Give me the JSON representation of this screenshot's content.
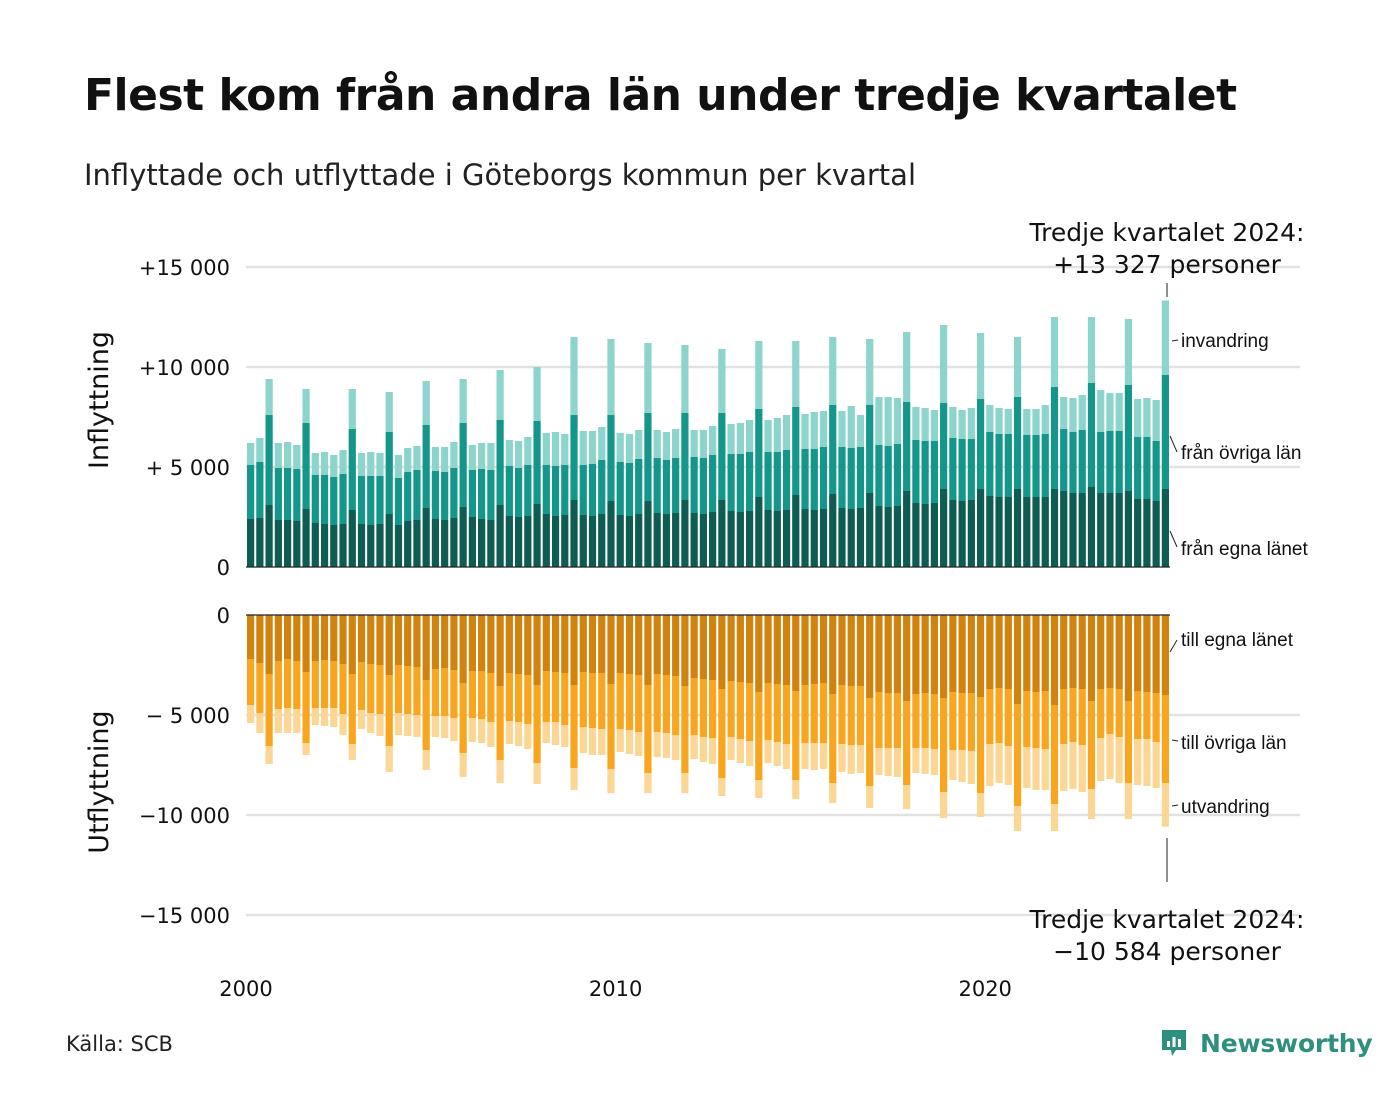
{
  "title": "Flest kom från andra län under tredje kvartalet",
  "subtitle": "Inflyttade och utflyttade i Göteborgs kommun per kvartal",
  "source": "Källa: SCB",
  "brand": {
    "name": "Newsworthy",
    "icon": "newsworthy-logo-icon",
    "color": "#2f8f7f"
  },
  "annotations": {
    "top_line1": "Tredje kvartalet 2024:",
    "top_line2": "+13 327 personer",
    "bottom_line1": "Tredje kvartalet 2024:",
    "bottom_line2": "−10 584 personer"
  },
  "colors": {
    "in_own": "#0e5c52",
    "in_other": "#14968a",
    "in_immig": "#8cd4cc",
    "out_own": "#d1830f",
    "out_other": "#f8a51f",
    "out_emig": "#fbd694",
    "grid": "#e2e2e2",
    "axis": "#222222"
  },
  "chart_data": [
    {
      "type": "bar",
      "stacked": true,
      "panel": "top",
      "ylabel": "Inflyttning",
      "ylim": [
        0,
        15000
      ],
      "yticks": [
        0,
        5000,
        10000,
        15000
      ],
      "ytick_labels": [
        "0",
        "+ 5 000",
        "+10 000",
        "+15 000"
      ],
      "xticks": [
        2000,
        2010,
        2020
      ],
      "x_start": "2000-Q1",
      "x_end": "2024-Q3",
      "grid": true,
      "series": [
        {
          "name": "från egna länet",
          "values": [
            2400,
            2450,
            3100,
            2350,
            2350,
            2300,
            2900,
            2200,
            2150,
            2100,
            2150,
            2850,
            2150,
            2100,
            2150,
            2650,
            2100,
            2300,
            2350,
            2950,
            2400,
            2350,
            2450,
            3000,
            2500,
            2400,
            2350,
            3100,
            2550,
            2500,
            2550,
            3150,
            2650,
            2550,
            2600,
            3350,
            2600,
            2550,
            2650,
            3300,
            2600,
            2550,
            2650,
            3300,
            2700,
            2650,
            2700,
            3350,
            2700,
            2650,
            2750,
            3350,
            2800,
            2750,
            2800,
            3500,
            2850,
            2800,
            2850,
            3600,
            2900,
            2850,
            2900,
            3650,
            2950,
            2900,
            2950,
            3700,
            3050,
            3000,
            3050,
            3800,
            3200,
            3150,
            3200,
            3900,
            3350,
            3300,
            3350,
            3900,
            3550,
            3500,
            3500,
            3900,
            3500,
            3500,
            3500,
            3900,
            3800,
            3700,
            3700,
            4000,
            3700,
            3700,
            3700,
            3800,
            3400,
            3400,
            3300,
            3900
          ]
        },
        {
          "name": "från övriga län",
          "values": [
            2700,
            2800,
            4500,
            2600,
            2600,
            2600,
            4300,
            2400,
            2450,
            2400,
            2500,
            4050,
            2400,
            2450,
            2400,
            4100,
            2350,
            2450,
            2500,
            4150,
            2400,
            2400,
            2500,
            4200,
            2350,
            2500,
            2500,
            4250,
            2500,
            2450,
            2550,
            4150,
            2450,
            2500,
            2500,
            4250,
            2500,
            2600,
            2700,
            4300,
            2650,
            2650,
            2750,
            4400,
            2750,
            2700,
            2750,
            4350,
            2800,
            2800,
            2850,
            4350,
            2850,
            2900,
            2950,
            4400,
            2900,
            2950,
            3000,
            4400,
            3000,
            3050,
            3100,
            4450,
            3050,
            3050,
            3050,
            4400,
            3050,
            3050,
            3100,
            4450,
            3150,
            3150,
            3100,
            4300,
            3100,
            3100,
            3050,
            4500,
            3200,
            3150,
            3150,
            4600,
            3100,
            3100,
            3150,
            5100,
            3100,
            3050,
            3150,
            5200,
            3050,
            3100,
            3100,
            5300,
            3100,
            3100,
            3000,
            5700
          ]
        },
        {
          "name": "invandring",
          "values": [
            1100,
            1200,
            1800,
            1250,
            1300,
            1200,
            1700,
            1100,
            1150,
            1100,
            1200,
            2000,
            1150,
            1200,
            1150,
            2000,
            1150,
            1200,
            1200,
            2200,
            1200,
            1250,
            1300,
            2200,
            1250,
            1300,
            1350,
            2500,
            1300,
            1350,
            1400,
            2700,
            1600,
            1700,
            1550,
            3900,
            1700,
            1650,
            1650,
            3800,
            1450,
            1450,
            1450,
            3500,
            1400,
            1400,
            1450,
            3400,
            1350,
            1400,
            1450,
            3200,
            1500,
            1550,
            1600,
            3400,
            1600,
            1700,
            1750,
            3300,
            1750,
            1850,
            1800,
            3400,
            1800,
            2100,
            1600,
            3300,
            2400,
            2450,
            2300,
            3500,
            1650,
            1650,
            1550,
            3900,
            1550,
            1450,
            1550,
            3300,
            1350,
            1300,
            1250,
            3000,
            1300,
            1300,
            1450,
            3500,
            1600,
            1700,
            1750,
            3300,
            2100,
            1900,
            1900,
            3300,
            1900,
            1950,
            2050,
            3727
          ]
        }
      ]
    },
    {
      "type": "bar",
      "stacked": true,
      "panel": "bottom",
      "ylabel": "Utflyttning",
      "ylim": [
        -15000,
        0
      ],
      "yticks": [
        0,
        -5000,
        -10000,
        -15000
      ],
      "ytick_labels": [
        "0",
        "− 5 000",
        "−10 000",
        "−15 000"
      ],
      "xticks": [
        2000,
        2010,
        2020
      ],
      "x_start": "2000-Q1",
      "x_end": "2024-Q3",
      "grid": true,
      "series": [
        {
          "name": "till egna länet",
          "values": [
            -2200,
            -2400,
            -2950,
            -2300,
            -2200,
            -2300,
            -2850,
            -2300,
            -2250,
            -2300,
            -2450,
            -2950,
            -2350,
            -2450,
            -2500,
            -3000,
            -2500,
            -2550,
            -2600,
            -3250,
            -2700,
            -2650,
            -2750,
            -3400,
            -2800,
            -2800,
            -2900,
            -3550,
            -2900,
            -2950,
            -3000,
            -3500,
            -2800,
            -2850,
            -2900,
            -3500,
            -2850,
            -2900,
            -2900,
            -3450,
            -2900,
            -2950,
            -3000,
            -3500,
            -2950,
            -3000,
            -3050,
            -3550,
            -3150,
            -3200,
            -3250,
            -3700,
            -3300,
            -3350,
            -3400,
            -3850,
            -3400,
            -3450,
            -3500,
            -3800,
            -3500,
            -3450,
            -3400,
            -3950,
            -3500,
            -3550,
            -3550,
            -4150,
            -3850,
            -3900,
            -3900,
            -4300,
            -3950,
            -3900,
            -3950,
            -4150,
            -3850,
            -3900,
            -3900,
            -4100,
            -3700,
            -3650,
            -3700,
            -4450,
            -3800,
            -3850,
            -3800,
            -4500,
            -3700,
            -3650,
            -3700,
            -4300,
            -3700,
            -3650,
            -3700,
            -4300,
            -3800,
            -3850,
            -3900,
            -4000
          ]
        },
        {
          "name": "till övriga län",
          "values": [
            -2300,
            -2500,
            -3600,
            -2400,
            -2450,
            -2400,
            -3550,
            -2350,
            -2400,
            -2350,
            -2500,
            -3500,
            -2400,
            -2450,
            -2450,
            -3550,
            -2400,
            -2400,
            -2400,
            -3500,
            -2350,
            -2400,
            -2400,
            -3500,
            -2350,
            -2400,
            -2450,
            -3700,
            -2400,
            -2400,
            -2450,
            -3900,
            -2550,
            -2500,
            -2600,
            -4150,
            -2750,
            -2750,
            -2800,
            -4250,
            -2800,
            -2800,
            -2850,
            -4400,
            -2900,
            -2900,
            -2950,
            -4350,
            -2850,
            -2900,
            -2900,
            -4450,
            -2800,
            -2850,
            -2900,
            -4400,
            -2850,
            -2900,
            -2950,
            -4450,
            -2900,
            -2950,
            -3000,
            -4450,
            -2950,
            -2950,
            -2950,
            -4400,
            -2800,
            -2750,
            -2750,
            -4200,
            -2700,
            -2750,
            -2750,
            -4700,
            -2900,
            -2850,
            -2900,
            -4800,
            -2750,
            -2750,
            -2850,
            -5100,
            -2800,
            -2800,
            -2900,
            -4950,
            -2750,
            -2700,
            -2800,
            -4400,
            -2450,
            -2300,
            -2400,
            -4100,
            -2400,
            -2350,
            -2450,
            -4400
          ]
        },
        {
          "name": "utvandring",
          "values": [
            -900,
            -1000,
            -900,
            -1200,
            -1250,
            -1200,
            -600,
            -850,
            -900,
            -950,
            -1050,
            -800,
            -950,
            -1000,
            -1100,
            -1300,
            -1100,
            -1100,
            -1100,
            -1000,
            -1050,
            -1100,
            -1150,
            -1200,
            -1200,
            -1200,
            -1250,
            -1150,
            -1150,
            -1200,
            -1250,
            -1050,
            -1050,
            -1150,
            -1100,
            -1100,
            -1300,
            -1350,
            -1300,
            -1200,
            -1150,
            -1200,
            -1200,
            -1000,
            -1250,
            -1250,
            -1250,
            -1000,
            -1200,
            -1250,
            -1300,
            -900,
            -1150,
            -1200,
            -1250,
            -900,
            -1150,
            -1200,
            -1250,
            -950,
            -1300,
            -1350,
            -1300,
            -1000,
            -1400,
            -1450,
            -1400,
            -1100,
            -1350,
            -1400,
            -1450,
            -1200,
            -1250,
            -1300,
            -1300,
            -1300,
            -1500,
            -1600,
            -1650,
            -1200,
            -2100,
            -2000,
            -1950,
            -1250,
            -2050,
            -2100,
            -2050,
            -1350,
            -2350,
            -2350,
            -2350,
            -1500,
            -2150,
            -2250,
            -2300,
            -1800,
            -2300,
            -2350,
            -2300,
            -2184
          ]
        }
      ]
    }
  ],
  "legend": {
    "top": [
      "invandring",
      "från övriga län",
      "från egna länet"
    ],
    "bottom": [
      "till egna länet",
      "till övriga län",
      "utvandring"
    ]
  }
}
